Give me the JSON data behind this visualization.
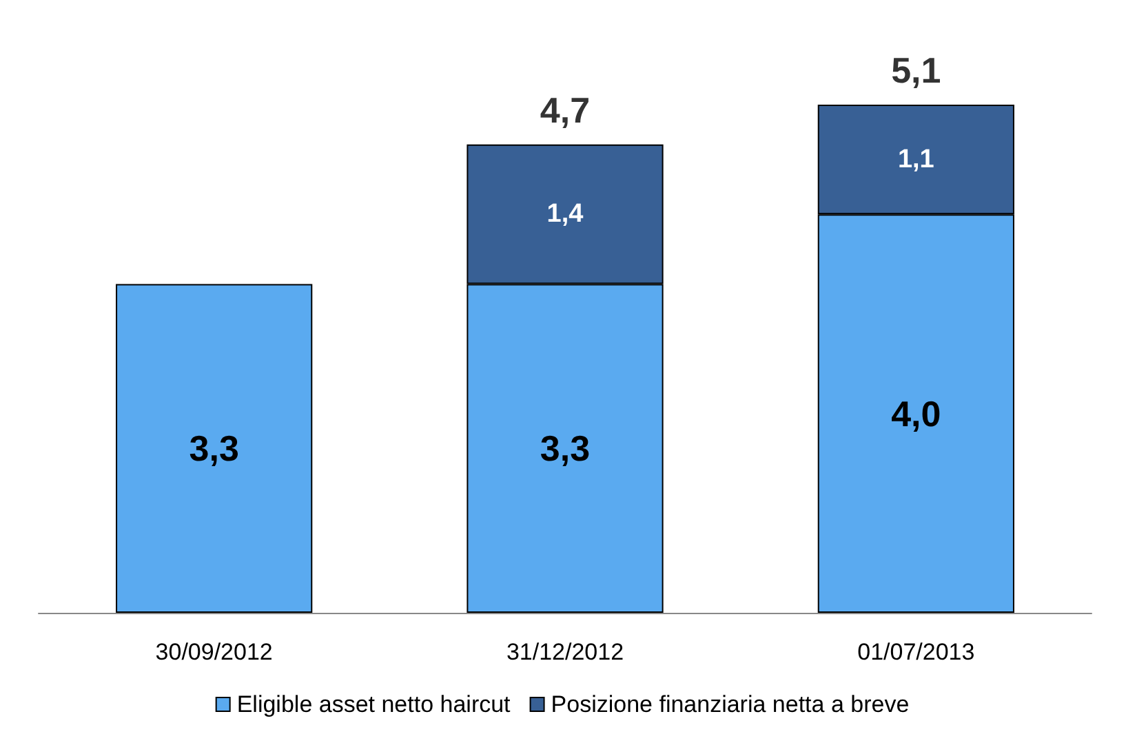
{
  "chart_data": {
    "type": "bar",
    "stacked": true,
    "categories": [
      "30/09/2012",
      "31/12/2012",
      "01/07/2013"
    ],
    "series": [
      {
        "name": "Eligible asset netto haircut",
        "color": "#5aaaf0",
        "values": [
          3.3,
          3.3,
          4.0
        ],
        "value_labels": [
          "3,3",
          "3,3",
          "4,0"
        ]
      },
      {
        "name": "Posizione finanziaria netta a breve",
        "color": "#386095",
        "values": [
          null,
          1.4,
          1.1
        ],
        "value_labels": [
          null,
          "1,4",
          "1,1"
        ]
      }
    ],
    "totals": [
      null,
      "4,7",
      "5,1"
    ],
    "legend": "bottom"
  }
}
